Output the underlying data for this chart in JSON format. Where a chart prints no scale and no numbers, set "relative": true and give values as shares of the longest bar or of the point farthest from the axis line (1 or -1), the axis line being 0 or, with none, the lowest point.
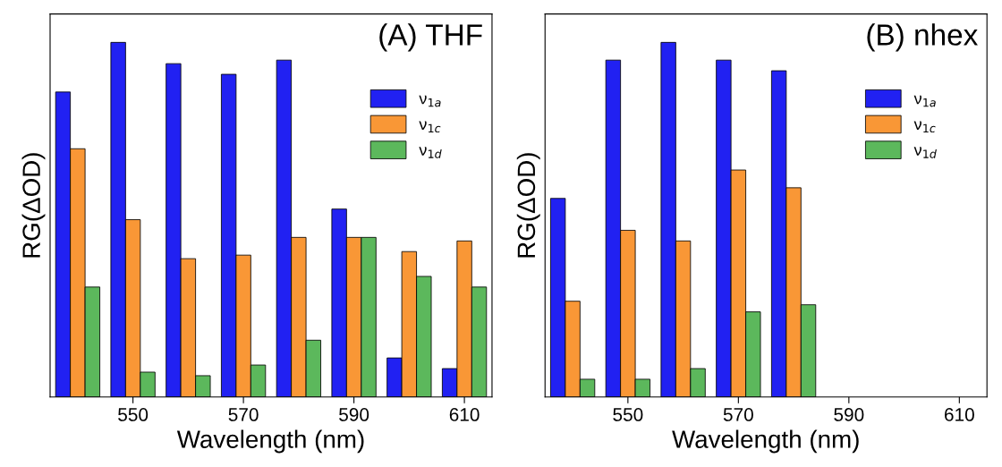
{
  "chart_data": [
    {
      "type": "bar",
      "title": "(A) THF",
      "xlabel": "Wavelength (nm)",
      "ylabel": "RG(ΔOD)",
      "relative": true,
      "legend": "top right",
      "categories": [
        null,
        "550",
        null,
        "570",
        null,
        "590",
        null,
        "610"
      ],
      "series": [
        {
          "name": "ν$_{1a}$",
          "color": "#2121f2",
          "values": [
            0.86,
            1.0,
            0.94,
            0.91,
            0.95,
            0.53,
            0.11,
            0.08
          ]
        },
        {
          "name": "ν$_{1c}$",
          "color": "#f99736",
          "values": [
            0.7,
            0.5,
            0.39,
            0.4,
            0.45,
            0.45,
            0.41,
            0.44
          ]
        },
        {
          "name": "ν$_{1d}$",
          "color": "#5cb85c",
          "values": [
            0.31,
            0.07,
            0.06,
            0.09,
            0.16,
            0.45,
            0.34,
            0.31
          ]
        }
      ]
    },
    {
      "type": "bar",
      "title": "(B) nhex",
      "xlabel": "Wavelength (nm)",
      "ylabel": "RG(ΔOD)",
      "relative": true,
      "legend": "top right",
      "categories": [
        null,
        "550",
        null,
        "570",
        null,
        "590",
        null,
        "610"
      ],
      "series": [
        {
          "name": "ν$_{1a}$",
          "color": "#2121f2",
          "values": [
            0.56,
            0.95,
            1.0,
            0.95,
            0.92,
            null,
            null,
            null
          ]
        },
        {
          "name": "ν$_{1c}$",
          "color": "#f99736",
          "values": [
            0.27,
            0.47,
            0.44,
            0.64,
            0.59,
            null,
            null,
            null
          ]
        },
        {
          "name": "ν$_{1d}$",
          "color": "#5cb85c",
          "values": [
            0.05,
            0.05,
            0.08,
            0.24,
            0.26,
            null,
            null,
            null
          ]
        }
      ]
    }
  ]
}
